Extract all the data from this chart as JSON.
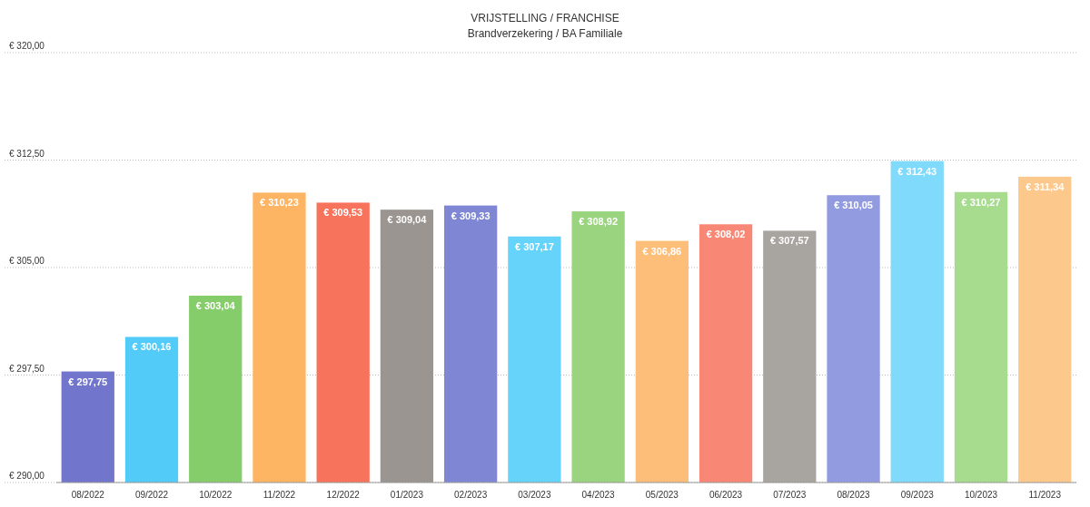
{
  "chart_data": {
    "type": "bar",
    "title": "VRIJSTELLING / FRANCHISE",
    "subtitle": "Brandverzekering / BA Familiale",
    "categories": [
      "08/2022",
      "09/2022",
      "10/2022",
      "11/2022",
      "12/2022",
      "01/2023",
      "02/2023",
      "03/2023",
      "04/2023",
      "05/2023",
      "06/2023",
      "07/2023",
      "08/2023",
      "09/2023",
      "10/2023",
      "11/2023"
    ],
    "values": [
      297.75,
      300.16,
      303.04,
      310.23,
      309.53,
      309.04,
      309.33,
      307.17,
      308.92,
      306.86,
      308.02,
      307.57,
      310.05,
      312.43,
      310.27,
      311.34
    ],
    "value_labels": [
      "€ 297,75",
      "€ 300,16",
      "€ 303,04",
      "€ 310,23",
      "€ 309,53",
      "€ 309,04",
      "€ 309,33",
      "€ 307,17",
      "€ 308,92",
      "€ 306,86",
      "€ 308,02",
      "€ 307,57",
      "€ 310,05",
      "€ 312,43",
      "€ 310,27",
      "€ 311,34"
    ],
    "colors": [
      "#7175cc",
      "#52cbf8",
      "#85cc6a",
      "#fdb563",
      "#f8735c",
      "#9a9590",
      "#7f87d4",
      "#66d3fa",
      "#9ad47e",
      "#fdbe7a",
      "#f98775",
      "#a8a49f",
      "#939be0",
      "#80dafb",
      "#a7dc8f",
      "#fdc88c"
    ],
    "ylim": [
      290,
      320
    ],
    "yticks": [
      {
        "value": 290,
        "label": "€ 290,00"
      },
      {
        "value": 297.5,
        "label": "€ 297,50"
      },
      {
        "value": 305,
        "label": "€ 305,00"
      },
      {
        "value": 312.5,
        "label": "€ 312,50"
      },
      {
        "value": 320,
        "label": "€ 320,00"
      }
    ],
    "grid": "y"
  }
}
